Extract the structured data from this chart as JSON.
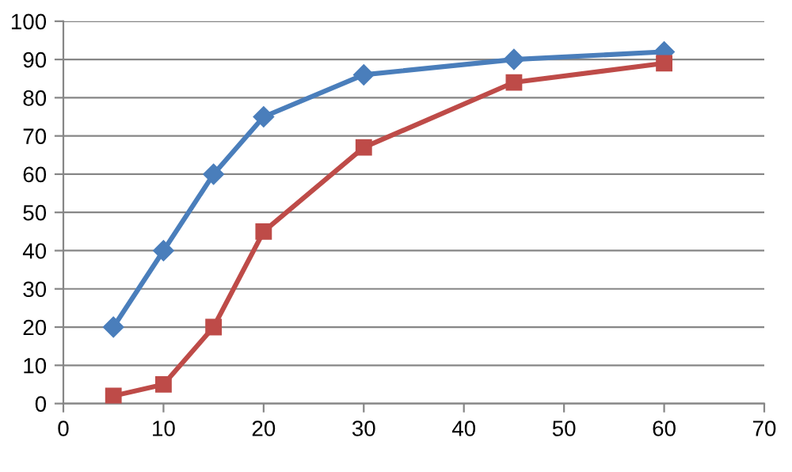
{
  "chart_data": {
    "type": "line",
    "xlim": [
      0,
      70
    ],
    "xticks": [
      0,
      10,
      20,
      30,
      40,
      50,
      60,
      70
    ],
    "ylim": [
      0,
      100
    ],
    "yticks": [
      0,
      10,
      20,
      30,
      40,
      50,
      60,
      70,
      80,
      90,
      100
    ],
    "grid": "y",
    "line_style": "solid",
    "series": [
      {
        "color": "#4a7ebb",
        "marker": "diamond",
        "x": [
          5,
          10,
          15,
          20,
          30,
          45,
          60
        ],
        "values": [
          20,
          40,
          60,
          75,
          86,
          90,
          92
        ]
      },
      {
        "color": "#be4b48",
        "marker": "square",
        "x": [
          5,
          10,
          15,
          20,
          30,
          45,
          60
        ],
        "values": [
          2,
          5,
          20,
          45,
          67,
          84,
          89
        ]
      }
    ]
  }
}
